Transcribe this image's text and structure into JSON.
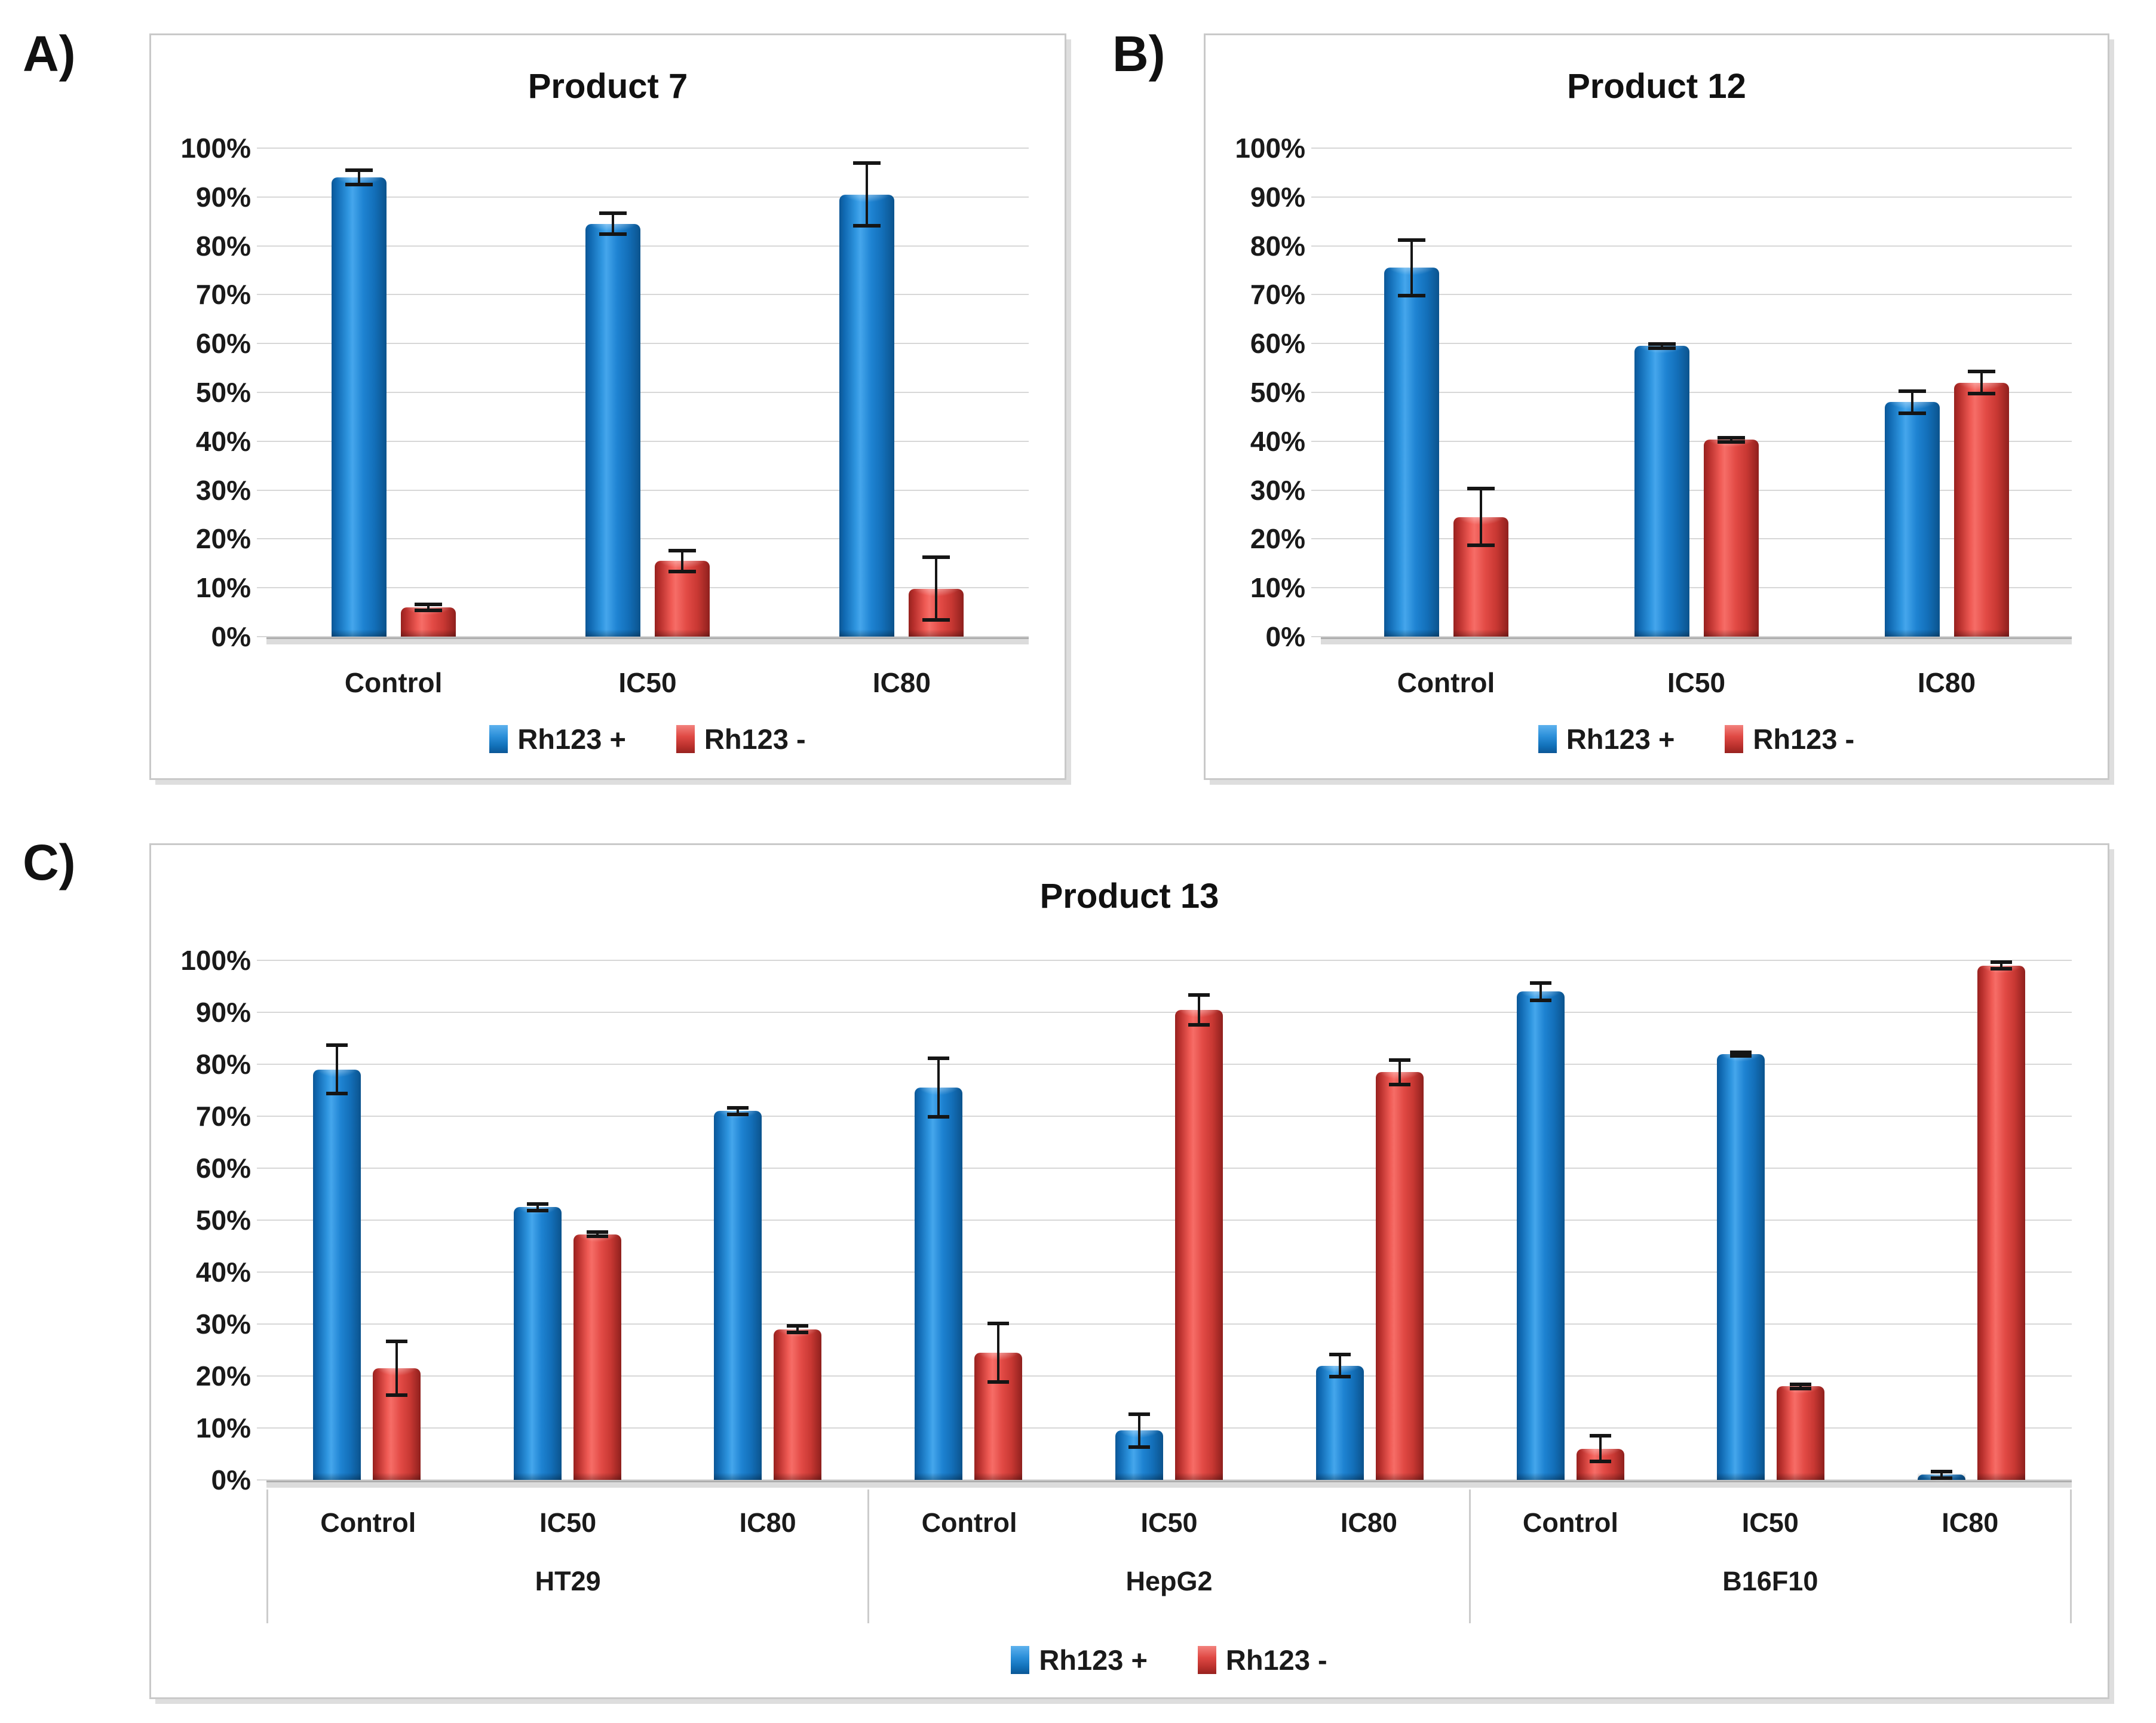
{
  "colors": {
    "series_blue": "#1E83D2",
    "series_red": "#E24A45",
    "gridline": "#D7D7D7",
    "axis_line": "#AEAEAE",
    "panel_border": "#C9C9C9",
    "error_bar": "#151515",
    "text": "#111111"
  },
  "chart_data": [
    {
      "id": "A",
      "panel_label": "A)",
      "type": "bar",
      "title": "Product 7",
      "categories": [
        "Control",
        "IC50",
        "IC80"
      ],
      "series": [
        {
          "name": "Rh123 +",
          "key": "rh123-plus",
          "color_key": "blue",
          "values": [
            94,
            84.5,
            90.5
          ],
          "errors": [
            1.8,
            2.5,
            6.8
          ]
        },
        {
          "name": "Rh123 -",
          "key": "rh123-minus",
          "color_key": "red",
          "values": [
            6,
            15.5,
            9.8
          ],
          "errors": [
            1,
            2.5,
            6.8
          ]
        }
      ],
      "ylabel": "",
      "ylim": [
        0,
        100
      ],
      "ytick_step": 10,
      "ytick_labels": [
        "0%",
        "10%",
        "20%",
        "30%",
        "40%",
        "50%",
        "60%",
        "70%",
        "80%",
        "90%",
        "100%"
      ],
      "grid": true,
      "legend_position": "bottom"
    },
    {
      "id": "B",
      "panel_label": "B)",
      "type": "bar",
      "title": "Product 12",
      "categories": [
        "Control",
        "IC50",
        "IC80"
      ],
      "series": [
        {
          "name": "Rh123 +",
          "key": "rh123-plus",
          "color_key": "blue",
          "values": [
            75.5,
            59.5,
            48
          ],
          "errors": [
            6,
            0.8,
            2.6
          ]
        },
        {
          "name": "Rh123 -",
          "key": "rh123-minus",
          "color_key": "red",
          "values": [
            24.5,
            40.3,
            52
          ],
          "errors": [
            6.2,
            0.8,
            2.6
          ]
        }
      ],
      "ylabel": "",
      "ylim": [
        0,
        100
      ],
      "ytick_step": 10,
      "ytick_labels": [
        "0%",
        "10%",
        "20%",
        "30%",
        "40%",
        "50%",
        "60%",
        "70%",
        "80%",
        "90%",
        "100%"
      ],
      "grid": true,
      "legend_position": "bottom"
    },
    {
      "id": "C",
      "panel_label": "C)",
      "type": "bar",
      "title": "Product 13",
      "groups": [
        {
          "label": "HT29",
          "categories": [
            "Control",
            "IC50",
            "IC80"
          ]
        },
        {
          "label": "HepG2",
          "categories": [
            "Control",
            "IC50",
            "IC80"
          ]
        },
        {
          "label": "B16F10",
          "categories": [
            "Control",
            "IC50",
            "IC80"
          ]
        }
      ],
      "series": [
        {
          "name": "Rh123 +",
          "key": "rh123-plus",
          "color_key": "blue",
          "values": [
            79,
            52.5,
            71,
            75.5,
            9.5,
            22,
            94,
            82,
            1
          ],
          "errors": [
            5,
            1,
            1,
            6,
            3.5,
            2.5,
            2,
            0.7,
            1
          ]
        },
        {
          "name": "Rh123 -",
          "key": "rh123-minus",
          "color_key": "red",
          "values": [
            21.5,
            47.3,
            29,
            24.5,
            90.5,
            78.5,
            6,
            18,
            99
          ],
          "errors": [
            5.5,
            0.7,
            1,
            6,
            3.2,
            2.7,
            2.8,
            0.7,
            1
          ]
        }
      ],
      "ylabel": "",
      "ylim": [
        0,
        100
      ],
      "ytick_step": 10,
      "ytick_labels": [
        "0%",
        "10%",
        "20%",
        "30%",
        "40%",
        "50%",
        "60%",
        "70%",
        "80%",
        "90%",
        "100%"
      ],
      "grid": true,
      "legend_position": "bottom"
    }
  ]
}
